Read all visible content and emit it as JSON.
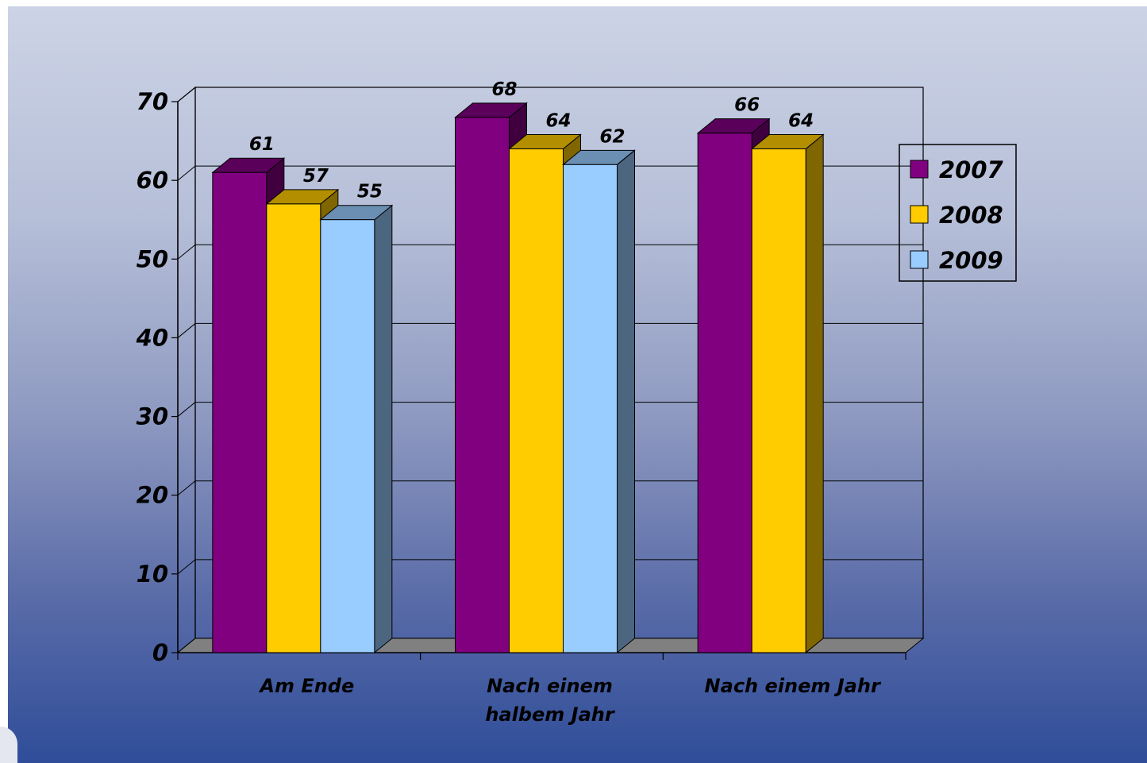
{
  "chart_data": {
    "type": "bar",
    "categories": [
      "Am Ende",
      "Nach einem halbem Jahr",
      "Nach einem Jahr"
    ],
    "category_lines": [
      [
        "Am Ende"
      ],
      [
        "Nach einem",
        "halbem Jahr"
      ],
      [
        "Nach einem Jahr"
      ]
    ],
    "series": [
      {
        "name": "2007",
        "color": "#800080",
        "values": [
          61,
          68,
          66
        ]
      },
      {
        "name": "2008",
        "color": "#ffcc00",
        "values": [
          57,
          64,
          64
        ]
      },
      {
        "name": "2009",
        "color": "#99ccff",
        "values": [
          55,
          62,
          null
        ]
      }
    ],
    "ylim": [
      0,
      70
    ],
    "yticks": [
      "0",
      "10",
      "20",
      "30",
      "40",
      "50",
      "60",
      "70"
    ],
    "grid": true,
    "legend_position": "right",
    "style": "3d-column",
    "background": "blue-gradient"
  }
}
